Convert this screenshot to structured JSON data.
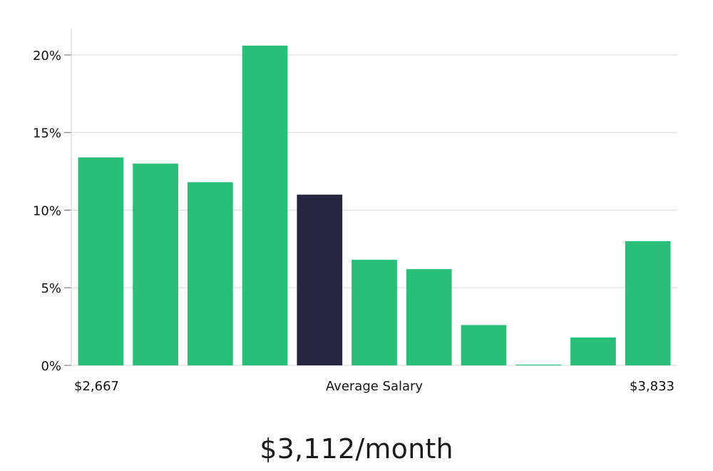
{
  "chart_data": {
    "type": "bar",
    "categories": [
      "",
      "",
      "",
      "",
      "",
      "",
      "",
      "",
      "",
      "",
      ""
    ],
    "values": [
      13.4,
      13.0,
      11.8,
      20.6,
      11.0,
      6.8,
      6.2,
      2.6,
      0.05,
      1.8,
      8.0
    ],
    "highlight_index": 4,
    "ylim": [
      0,
      21.7
    ],
    "yticks": [
      0,
      5,
      10,
      15,
      20
    ],
    "ytick_labels": [
      "0%",
      "5%",
      "10%",
      "15%",
      "20%"
    ],
    "xlabel": "Average Salary",
    "x_min_label": "$2,667",
    "x_max_label": "$3,833",
    "grid": true,
    "colors": {
      "bar": "#2abf78",
      "highlight": "#272442",
      "grid": "#d9d9d9",
      "axis": "#cfcfcf"
    }
  },
  "headline": "$3,112/month"
}
